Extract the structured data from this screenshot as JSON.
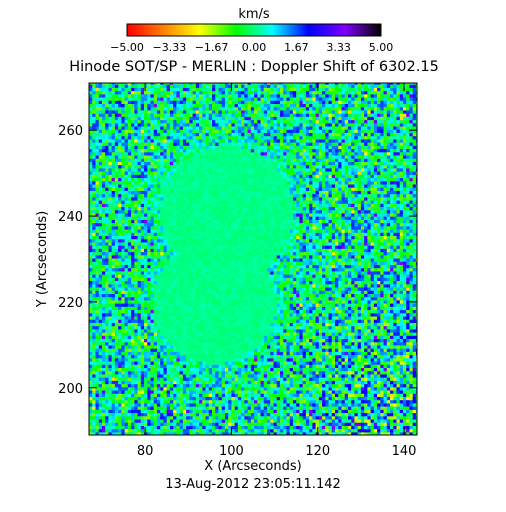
{
  "chart_data": {
    "type": "heatmap",
    "title": "Hinode SOT/SP - MERLIN : Doppler Shift of 6302.15",
    "xlabel": "X (Arcseconds)",
    "ylabel": "Y (Arcseconds)",
    "timestamp": "13-Aug-2012 23:05:11.142",
    "xlim": [
      67,
      143
    ],
    "ylim": [
      189,
      271
    ],
    "x_ticks": [
      80,
      100,
      120,
      140
    ],
    "y_ticks": [
      200,
      220,
      240,
      260
    ],
    "x_tick_labels": [
      "80",
      "100",
      "120",
      "140"
    ],
    "y_tick_labels": [
      "200",
      "220",
      "240",
      "260"
    ],
    "colorbar": {
      "label": "km/s",
      "range": [
        -5.0,
        5.0
      ],
      "tick_values": [
        -5.0,
        -3.33,
        -1.67,
        0.0,
        1.67,
        3.33,
        5.0
      ],
      "tick_labels": [
        "−5.00",
        "−3.33",
        "−1.67",
        "0.00",
        "1.67",
        "3.33",
        "5.00"
      ],
      "colormap": [
        "#ff0000",
        "#ff8000",
        "#ffff00",
        "#00ff00",
        "#00ffff",
        "#0000ff",
        "#8000ff",
        "#000000"
      ]
    },
    "features": [
      {
        "type": "sunspot-umbra",
        "x_center": 99,
        "y_center": 241,
        "radius": 14
      },
      {
        "type": "sunspot-umbra",
        "x_center": 96,
        "y_center": 220,
        "radius": 13
      }
    ],
    "background_mean_velocity": 0.3
  }
}
